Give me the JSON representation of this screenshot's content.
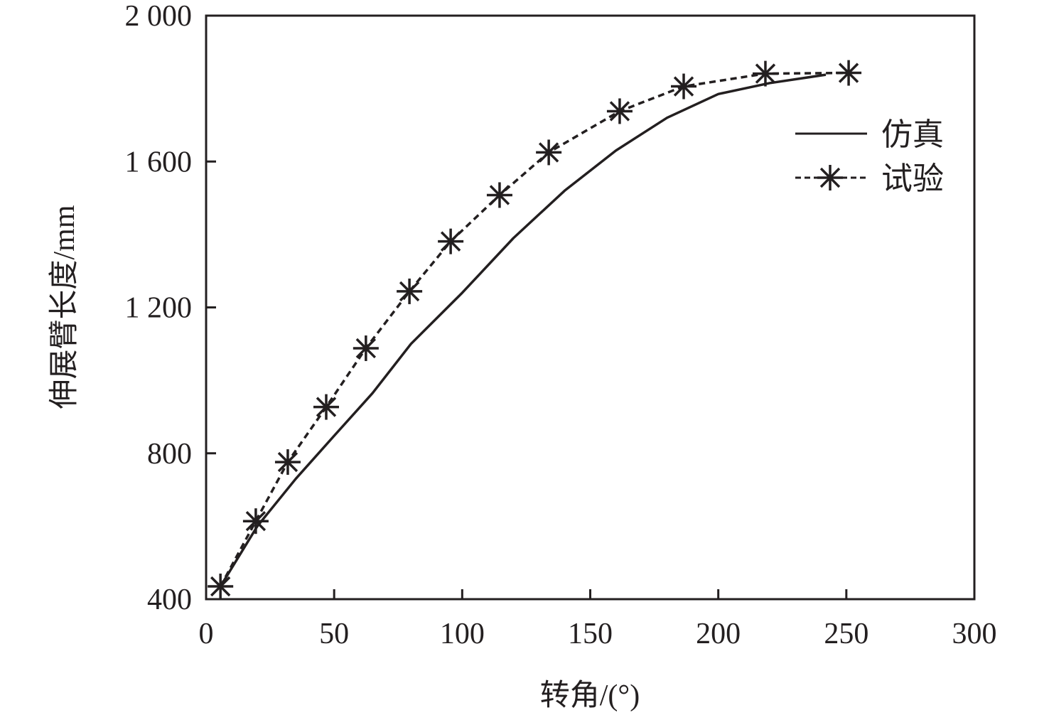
{
  "chart_data": {
    "type": "line",
    "title": "",
    "xlabel": "转角/(°)",
    "ylabel": "伸展臂长度/mm",
    "xlim": [
      0,
      300
    ],
    "ylim": [
      400,
      2000
    ],
    "xticks": [
      0,
      50,
      100,
      150,
      200,
      250,
      300
    ],
    "xtick_labels": [
      "0",
      "50",
      "100",
      "150",
      "200",
      "250",
      "300"
    ],
    "yticks": [
      400,
      800,
      1200,
      1600,
      2000
    ],
    "ytick_labels": [
      "400",
      "800",
      "1 200",
      "1 600",
      "2 000"
    ],
    "grid": false,
    "legend_position": "right",
    "series": [
      {
        "name": "仿真",
        "style": "solid",
        "x": [
          5.6,
          20,
          35,
          50,
          65,
          80,
          100,
          120,
          140,
          160,
          180,
          200,
          220,
          242
        ],
        "y": [
          435,
          600,
          730,
          848,
          965,
          1100,
          1240,
          1390,
          1520,
          1630,
          1720,
          1785,
          1815,
          1838
        ]
      },
      {
        "name": "试验",
        "style": "dashed",
        "marker": "asterisk",
        "x": [
          5.6,
          19.4,
          31.9,
          46.9,
          62.4,
          79.4,
          95.5,
          114.6,
          133.8,
          161.5,
          186.5,
          218.4,
          250.9
        ],
        "y": [
          435,
          614,
          776,
          927,
          1088,
          1244,
          1381,
          1508,
          1625,
          1738,
          1806,
          1841,
          1843
        ]
      }
    ],
    "colors": {
      "ink": "#231f20"
    }
  }
}
